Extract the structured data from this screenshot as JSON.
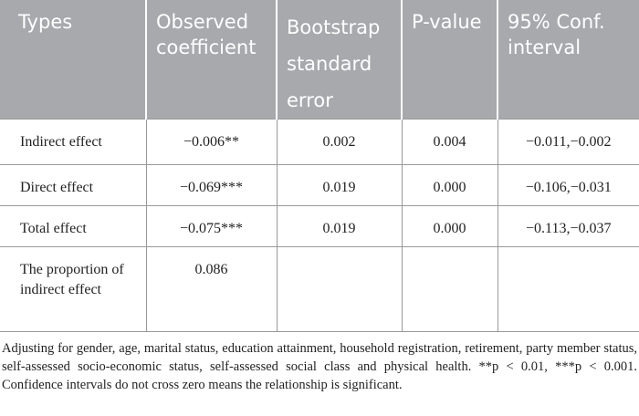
{
  "table": {
    "header": [
      "Types",
      "Observed coefficient",
      "Bootstrap standard error",
      "P-value",
      "95% Conf. interval"
    ],
    "rows": [
      [
        "Indirect effect",
        "−0.006**",
        "0.002",
        "0.004",
        "−0.011,−0.002"
      ],
      [
        "Direct effect",
        "−0.069***",
        "0.019",
        "0.000",
        "−0.106,−0.031"
      ],
      [
        "Total effect",
        "−0.075***",
        "0.019",
        "0.000",
        "−0.113,−0.037"
      ],
      [
        "The proportion of indirect effect",
        "0.086",
        "",
        "",
        ""
      ]
    ]
  },
  "footnote": "Adjusting for gender, age, marital status, education attainment, household registration, retirement, party member status, self-assessed socio-economic status, self-assessed social class and physical health. **p < 0.01, ***p < 0.001. Confidence intervals do not cross zero means the relationship is significant."
}
